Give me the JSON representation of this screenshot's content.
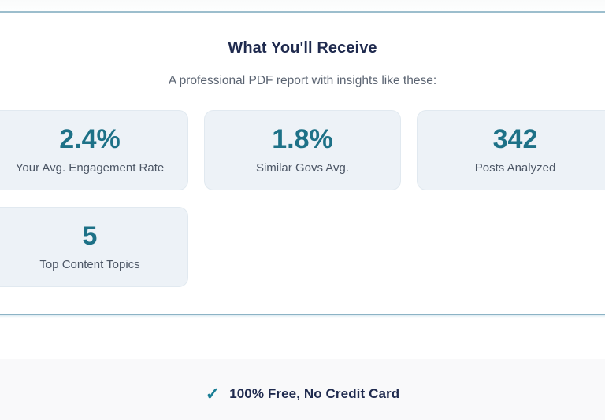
{
  "header": {
    "title": "What You'll Receive",
    "subtitle": "A professional PDF report with insights like these:"
  },
  "stats": [
    {
      "value": "2.4%",
      "label": "Your Avg. Engagement Rate"
    },
    {
      "value": "1.8%",
      "label": "Similar Govs Avg."
    },
    {
      "value": "342",
      "label": "Posts Analyzed"
    },
    {
      "value": "5",
      "label": "Top Content Topics"
    }
  ],
  "footer": {
    "check_icon": "✓",
    "text": "100% Free, No Credit Card"
  },
  "colors": {
    "stat_teal": "#1d7187",
    "check_teal": "#1b7f96",
    "heading_navy": "#1f2a4e",
    "subtitle_gray": "#5b6472",
    "label_gray": "#4d5766",
    "card_bg": "#edf2f7",
    "card_border": "#e1e9f0",
    "top_divider_blue": "#9cbecd",
    "mid_divider_blue": "#8cb3c5",
    "footer_bg": "#f9f9fa",
    "footer_border": "#ededee"
  }
}
